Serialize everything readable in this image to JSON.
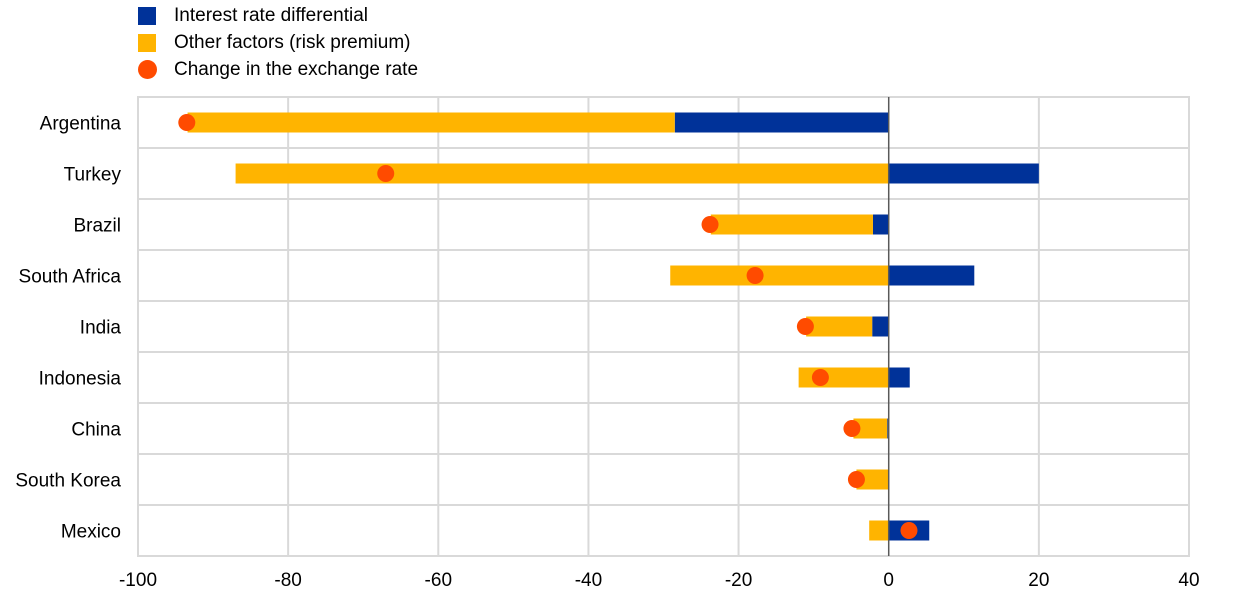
{
  "chart_data": {
    "type": "bar",
    "orientation": "horizontal",
    "stacked": true,
    "title": "",
    "xlabel": "",
    "ylabel": "",
    "xlim": [
      -100,
      40
    ],
    "xticks": [
      -100,
      -80,
      -60,
      -40,
      -20,
      0,
      20,
      40
    ],
    "xtick_labels": [
      "-100",
      "-80",
      "-60",
      "-40",
      "-20",
      "0",
      "20",
      "40"
    ],
    "grid": true,
    "legend_position": "top-left",
    "categories": [
      "Argentina",
      "Turkey",
      "Brazil",
      "South Africa",
      "India",
      "Indonesia",
      "China",
      "South Korea",
      "Mexico"
    ],
    "series": [
      {
        "name": "Interest rate differential",
        "kind": "bar",
        "color": "#003299",
        "values": [
          -28.5,
          20.0,
          -2.1,
          11.4,
          -2.2,
          2.8,
          -0.2,
          0.0,
          5.4
        ]
      },
      {
        "name": "Other factors (risk premium)",
        "kind": "bar",
        "color": "#FFB400",
        "values": [
          -64.9,
          -87.0,
          -21.6,
          -29.1,
          -8.8,
          -12.0,
          -4.5,
          -4.3,
          -2.6
        ]
      },
      {
        "name": "Change in the exchange rate",
        "kind": "dot",
        "color": "#FF4B00",
        "values": [
          -93.5,
          -67.0,
          -23.8,
          -17.8,
          -11.1,
          -9.1,
          -4.9,
          -4.3,
          2.7
        ]
      }
    ]
  },
  "legend": {
    "items": [
      {
        "label": "Interest rate differential",
        "shape": "square",
        "color": "#003299"
      },
      {
        "label": "Other factors (risk premium)",
        "shape": "square",
        "color": "#FFB400"
      },
      {
        "label": "Change in the exchange rate",
        "shape": "circle",
        "color": "#FF4B00"
      }
    ]
  }
}
